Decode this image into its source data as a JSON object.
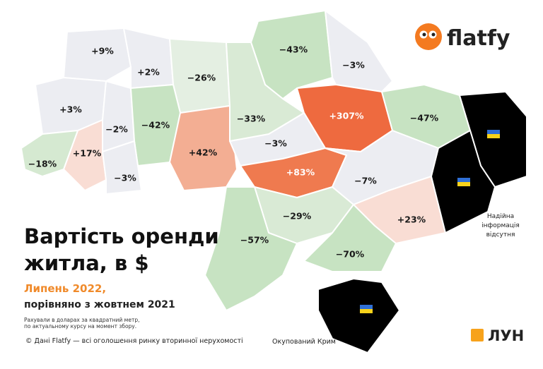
{
  "header": {
    "title_lines": [
      "Вартість оренди",
      "житла, в $"
    ],
    "period": "Липень 2022,",
    "comparison": "порівняно з жовтнем 2021",
    "note_lines": [
      "Рахували в доларах за квадратний метр,",
      "по актуальному курсу на момент збору."
    ]
  },
  "regions": [
    {
      "label": "+9%",
      "color": "#ecedf2"
    },
    {
      "label": "+2%",
      "color": "#ecedf2"
    },
    {
      "label": "−26%",
      "color": "#e4efe2"
    },
    {
      "label": "−43%",
      "color": "#c7e3c2"
    },
    {
      "label": "−3%",
      "color": "#ecedf2"
    },
    {
      "label": "+307%",
      "color": "#ee6a3f"
    },
    {
      "label": "−47%",
      "color": "#c7e3c2"
    },
    {
      "label": "+3%",
      "color": "#ecedf2"
    },
    {
      "label": "−2%",
      "color": "#ecedf2"
    },
    {
      "label": "−42%",
      "color": "#c7e3c2"
    },
    {
      "label": "+42%",
      "color": "#f3ae93"
    },
    {
      "label": "−3%",
      "color": "#ecedf2"
    },
    {
      "label": "+17%",
      "color": "#f9ddd4"
    },
    {
      "label": "−18%",
      "color": "#d5e9d1"
    },
    {
      "label": "−3%",
      "color": "#ecedf2"
    },
    {
      "label": "−33%",
      "color": "#d9ead5"
    },
    {
      "label": "+83%",
      "color": "#ef7a4f"
    },
    {
      "label": "−7%",
      "color": "#ecedf2"
    },
    {
      "label": "−29%",
      "color": "#d9ead5"
    },
    {
      "label": "−57%",
      "color": "#c7e3c2"
    },
    {
      "label": "+23%",
      "color": "#f9ddd4"
    },
    {
      "label": "−70%",
      "color": "#c7e3c2"
    }
  ],
  "occupied_color": "#000000",
  "no_data_lines": [
    "Надійна",
    "інформація",
    "відсутня"
  ],
  "crimea_label": "Окупований Крим",
  "source": "© Дані Flatfy — всі оголошення ринку вторинної нерухомості",
  "logo_flatfy": "flatfy",
  "logo_lun": "ЛУН"
}
